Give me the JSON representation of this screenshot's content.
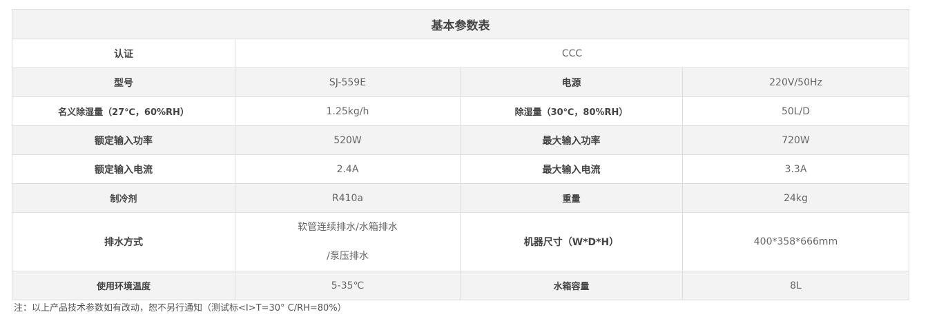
{
  "table": {
    "title": "基本参数表",
    "certification": {
      "label": "认证",
      "value": "CCC"
    },
    "rows": [
      {
        "k1": "型号",
        "v1": "SJ-559E",
        "k2": "电源",
        "v2": "220V/50Hz"
      },
      {
        "k1": "名义除湿量（27℃，60%RH）",
        "v1": "1.25kg/h",
        "k2": "除湿量（30℃，80%RH）",
        "v2": "50L/D"
      },
      {
        "k1": "额定输入功率",
        "v1": "520W",
        "k2": "最大输入功率",
        "v2": "720W"
      },
      {
        "k1": "额定输入电流",
        "v1": "2.4A",
        "k2": "最大输入电流",
        "v2": "3.3A"
      },
      {
        "k1": "制冷剂",
        "v1": "R410a",
        "k2": "重量",
        "v2": "24kg"
      },
      {
        "k1": "排水方式",
        "v1a": "软管连续排水/水箱排水",
        "v1b": "/泵压排水",
        "k2": "机器尺寸（W*D*H）",
        "v2": "400*358*666mm"
      },
      {
        "k1": "使用环境温度",
        "v1": "5-35℃",
        "k2": "水箱容量",
        "v2": "8L"
      }
    ]
  },
  "note": "注：以上产品技术参数如有改动，恕不另行通知（测试标<I>T=30° C/RH=80%）"
}
